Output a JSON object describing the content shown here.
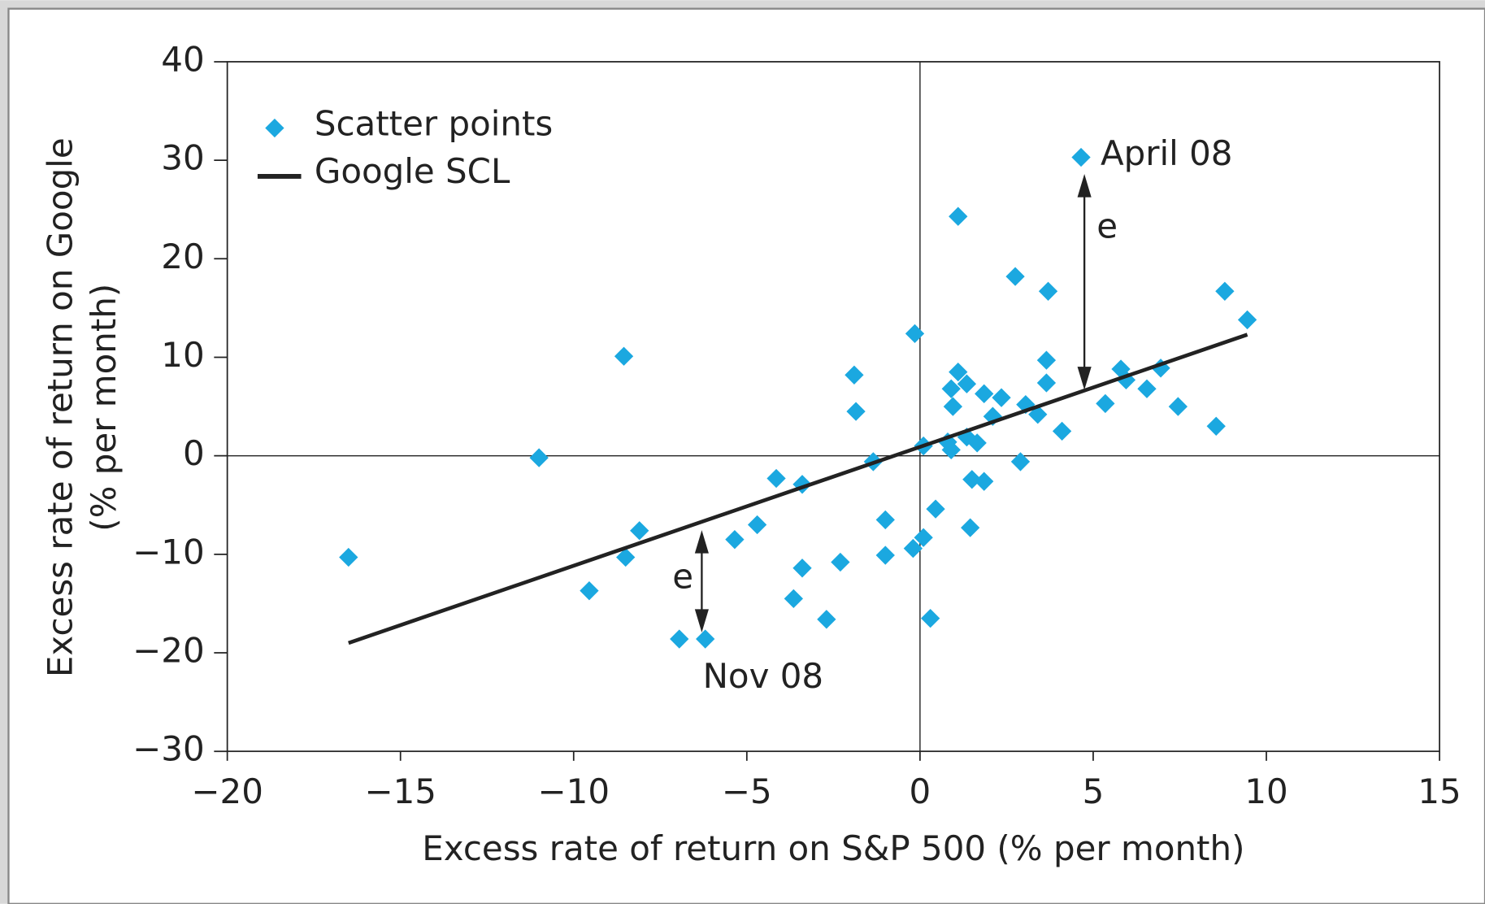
{
  "chart_data": {
    "type": "scatter",
    "x_label": "Excess rate of return on S&P 500 (% per month)",
    "y_label": [
      "Excess rate of return on Google",
      "(% per month)"
    ],
    "legend": "upper left",
    "series": [
      {
        "name": "Scatter points",
        "color": "#1ba8e0",
        "marker": "diamond",
        "x": [
          -16.5,
          -11.0,
          -9.55,
          -8.55,
          -8.5,
          -8.1,
          -6.95,
          -6.2,
          -5.35,
          -4.7,
          -4.15,
          -3.65,
          -3.4,
          -3.4,
          -2.7,
          -2.3,
          -1.9,
          -1.85,
          -1.35,
          -1.0,
          -1.0,
          -0.2,
          -0.15,
          0.1,
          0.1,
          0.3,
          0.45,
          0.8,
          0.9,
          0.9,
          0.95,
          1.1,
          1.1,
          1.35,
          1.35,
          1.45,
          1.5,
          1.65,
          1.85,
          1.85,
          2.1,
          2.35,
          2.75,
          2.9,
          3.05,
          3.4,
          3.65,
          3.65,
          3.7,
          4.1,
          4.65,
          5.35,
          5.8,
          5.95,
          6.55,
          6.95,
          7.45,
          8.55,
          8.8,
          9.45
        ],
        "values": [
          -10.3,
          -0.2,
          -13.7,
          10.1,
          -10.3,
          -7.6,
          -18.6,
          -18.6,
          -8.5,
          -7.0,
          -2.3,
          -14.5,
          -2.9,
          -11.4,
          -16.6,
          -10.8,
          8.2,
          4.5,
          -0.6,
          -6.5,
          -10.1,
          -9.4,
          12.4,
          1.0,
          -8.3,
          -16.5,
          -5.4,
          1.4,
          0.6,
          6.8,
          5.0,
          24.3,
          8.5,
          7.3,
          1.9,
          -7.3,
          -2.4,
          1.3,
          -2.6,
          6.3,
          4.0,
          5.9,
          18.2,
          -0.6,
          5.2,
          4.2,
          9.7,
          7.4,
          16.7,
          2.5,
          30.3,
          5.3,
          8.8,
          7.7,
          6.8,
          8.9,
          5.0,
          3.0,
          16.7,
          13.8
        ]
      },
      {
        "name": "Google SCL",
        "color": "#222222",
        "marker": "line",
        "x": [
          -16.5,
          9.45
        ],
        "values": [
          -19.0,
          12.3
        ]
      }
    ],
    "annotations": [
      "April 08",
      "Nov 08",
      "e",
      "e"
    ],
    "xlim": [
      -20,
      15
    ],
    "xticks": [
      {
        "value": -20,
        "label": "−20"
      },
      {
        "value": -15,
        "label": "−15"
      },
      {
        "value": -10,
        "label": "−10"
      },
      {
        "value": -5,
        "label": "−5"
      },
      0,
      5,
      10,
      15
    ],
    "ylim": [
      -30,
      40
    ],
    "yticks": [
      {
        "value": -30,
        "label": "−30"
      },
      {
        "value": -20,
        "label": "−20"
      },
      {
        "value": -10,
        "label": "−10"
      },
      0,
      10,
      20,
      30,
      40
    ]
  }
}
